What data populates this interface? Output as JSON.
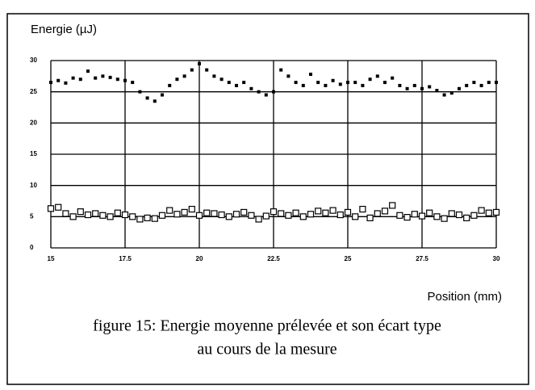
{
  "chart_data": {
    "type": "scatter",
    "ylabel": "Energie (µJ)",
    "xlabel": "Position (mm)",
    "caption": [
      "figure 15: Energie moyenne prélevée et son écart type",
      "au cours de la mesure"
    ],
    "xlim": [
      15,
      30
    ],
    "xticks": [
      15,
      17.5,
      20,
      22.5,
      25,
      27.5,
      30
    ],
    "ylim": [
      0,
      30
    ],
    "yticks": [
      0,
      5,
      10,
      15,
      20,
      25,
      30
    ],
    "grid": true,
    "x": [
      15,
      15.25,
      15.5,
      15.75,
      16,
      16.25,
      16.5,
      16.75,
      17,
      17.25,
      17.5,
      17.75,
      18,
      18.25,
      18.5,
      18.75,
      19,
      19.25,
      19.5,
      19.75,
      20,
      20.25,
      20.5,
      20.75,
      21,
      21.25,
      21.5,
      21.75,
      22,
      22.25,
      22.5,
      22.75,
      23,
      23.25,
      23.5,
      23.75,
      24,
      24.25,
      24.5,
      24.75,
      25,
      25.25,
      25.5,
      25.75,
      26,
      26.25,
      26.5,
      26.75,
      27,
      27.25,
      27.5,
      27.75,
      28,
      28.25,
      28.5,
      28.75,
      29,
      29.25,
      29.5,
      29.75,
      30
    ],
    "series": [
      {
        "color": "#000000",
        "marker": "filled",
        "values": [
          26.5,
          26.8,
          26.4,
          27.2,
          27.0,
          28.3,
          27.2,
          27.5,
          27.3,
          27.0,
          26.8,
          26.5,
          25.0,
          24.0,
          23.5,
          24.5,
          26.0,
          27.0,
          27.5,
          28.5,
          29.5,
          28.5,
          27.5,
          27.0,
          26.5,
          26.0,
          26.5,
          25.5,
          25.0,
          24.5,
          25.0,
          28.5,
          27.5,
          26.5,
          26.0,
          27.8,
          26.5,
          26.0,
          26.8,
          26.2,
          26.5,
          26.5,
          26.0,
          27.0,
          27.5,
          26.5,
          27.2,
          26.0,
          25.5,
          26.0,
          25.5,
          25.8,
          25.2,
          24.5,
          24.8,
          25.5,
          26.0,
          26.5,
          26.0,
          26.5,
          26.5
        ]
      },
      {
        "color": "#000000",
        "marker": "open",
        "values": [
          6.3,
          6.5,
          5.5,
          5.0,
          5.8,
          5.3,
          5.5,
          5.2,
          5.0,
          5.6,
          5.3,
          5.0,
          4.6,
          4.8,
          4.7,
          5.2,
          6.0,
          5.4,
          5.7,
          6.2,
          5.2,
          5.6,
          5.5,
          5.3,
          5.0,
          5.4,
          5.7,
          5.2,
          4.6,
          5.1,
          5.8,
          5.5,
          5.2,
          5.6,
          5.0,
          5.4,
          5.9,
          5.6,
          6.0,
          5.3,
          5.7,
          5.0,
          6.2,
          4.8,
          5.5,
          5.9,
          6.8,
          5.2,
          4.9,
          5.4,
          5.1,
          5.6,
          5.0,
          4.7,
          5.5,
          5.3,
          4.8,
          5.2,
          6.0,
          5.6,
          5.7
        ]
      }
    ]
  }
}
